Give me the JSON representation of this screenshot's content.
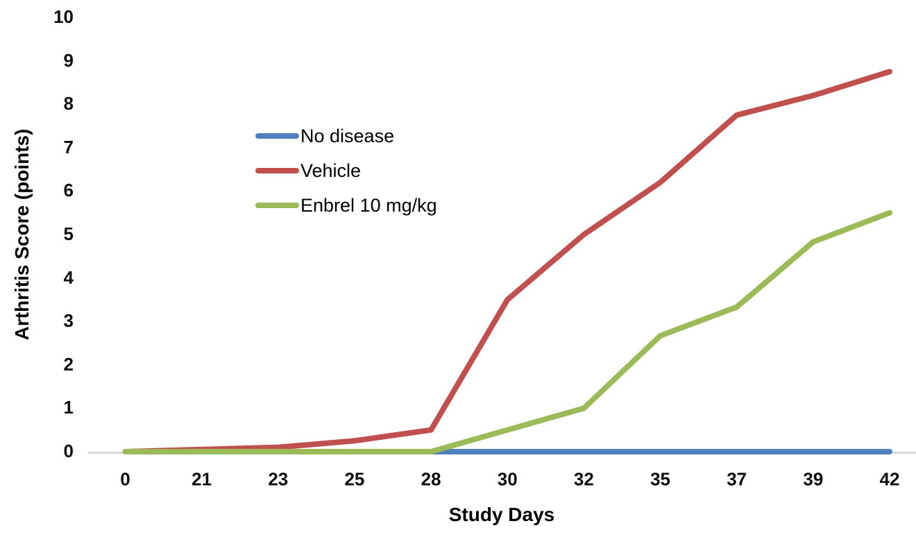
{
  "chart_data": {
    "type": "line",
    "title": "",
    "xlabel": "Study Days",
    "ylabel": "Arthritis Score (points)",
    "categories": [
      "0",
      "21",
      "23",
      "25",
      "28",
      "30",
      "32",
      "35",
      "37",
      "39",
      "42"
    ],
    "y_ticks": [
      "0",
      "1",
      "2",
      "3",
      "4",
      "5",
      "6",
      "7",
      "8",
      "9",
      "10"
    ],
    "ylim": [
      0,
      10
    ],
    "grid": false,
    "legend_position": "inside-upper-left",
    "axis_line_color": "#d9d9d9",
    "series": [
      {
        "name": "No disease",
        "color": "#4f81bd",
        "values": [
          0,
          0,
          0,
          0,
          0,
          0,
          0,
          0,
          0,
          0,
          0
        ]
      },
      {
        "name": "Vehicle",
        "color": "#c0504d",
        "values": [
          0,
          0.05,
          0.1,
          0.25,
          0.5,
          3.5,
          5.0,
          6.2,
          7.75,
          8.2,
          8.75
        ]
      },
      {
        "name": "Enbrel 10 mg/kg",
        "color": "#9bbb59",
        "values": [
          0,
          0,
          0,
          0,
          0,
          0.5,
          1.0,
          2.67,
          3.33,
          4.83,
          5.5
        ]
      }
    ]
  }
}
